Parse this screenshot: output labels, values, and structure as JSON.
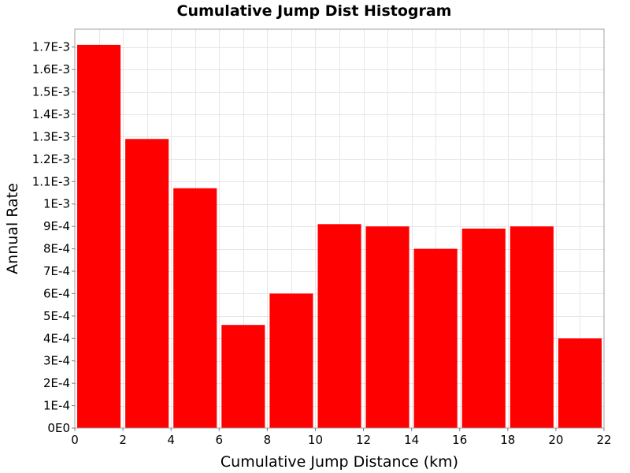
{
  "chart_data": {
    "type": "bar",
    "title": "Cumulative Jump Dist Histogram",
    "xlabel": "Cumulative Jump Distance (km)",
    "ylabel": "Annual Rate",
    "xlim": [
      0,
      22
    ],
    "ylim": [
      0,
      0.00178
    ],
    "grid": true,
    "bar_color": "#ff0000",
    "bins": [
      {
        "x_start": 0,
        "x_end": 2,
        "value": 0.00171
      },
      {
        "x_start": 2,
        "x_end": 4,
        "value": 0.00129
      },
      {
        "x_start": 4,
        "x_end": 6,
        "value": 0.00107
      },
      {
        "x_start": 6,
        "x_end": 8,
        "value": 0.00046
      },
      {
        "x_start": 8,
        "x_end": 10,
        "value": 0.0006
      },
      {
        "x_start": 10,
        "x_end": 12,
        "value": 0.00091
      },
      {
        "x_start": 12,
        "x_end": 14,
        "value": 0.0009
      },
      {
        "x_start": 14,
        "x_end": 16,
        "value": 0.0008
      },
      {
        "x_start": 16,
        "x_end": 18,
        "value": 0.00089
      },
      {
        "x_start": 18,
        "x_end": 20,
        "value": 0.0009
      },
      {
        "x_start": 20,
        "x_end": 22,
        "value": 0.0004
      }
    ],
    "x_ticks": [
      {
        "value": 0,
        "label": "0"
      },
      {
        "value": 2,
        "label": "2"
      },
      {
        "value": 4,
        "label": "4"
      },
      {
        "value": 6,
        "label": "6"
      },
      {
        "value": 8,
        "label": "8"
      },
      {
        "value": 10,
        "label": "10"
      },
      {
        "value": 12,
        "label": "12"
      },
      {
        "value": 14,
        "label": "14"
      },
      {
        "value": 16,
        "label": "16"
      },
      {
        "value": 18,
        "label": "18"
      },
      {
        "value": 20,
        "label": "20"
      },
      {
        "value": 22,
        "label": "22"
      }
    ],
    "y_ticks": [
      {
        "value": 0,
        "label": "0E0"
      },
      {
        "value": 0.0001,
        "label": "1E-4"
      },
      {
        "value": 0.0002,
        "label": "2E-4"
      },
      {
        "value": 0.0003,
        "label": "3E-4"
      },
      {
        "value": 0.0004,
        "label": "4E-4"
      },
      {
        "value": 0.0005,
        "label": "5E-4"
      },
      {
        "value": 0.0006,
        "label": "6E-4"
      },
      {
        "value": 0.0007,
        "label": "7E-4"
      },
      {
        "value": 0.0008,
        "label": "8E-4"
      },
      {
        "value": 0.0009,
        "label": "9E-4"
      },
      {
        "value": 0.001,
        "label": "1E-3"
      },
      {
        "value": 0.0011,
        "label": "1.1E-3"
      },
      {
        "value": 0.0012,
        "label": "1.2E-3"
      },
      {
        "value": 0.0013,
        "label": "1.3E-3"
      },
      {
        "value": 0.0014,
        "label": "1.4E-3"
      },
      {
        "value": 0.0015,
        "label": "1.5E-3"
      },
      {
        "value": 0.0016,
        "label": "1.6E-3"
      },
      {
        "value": 0.0017,
        "label": "1.7E-3"
      }
    ]
  }
}
